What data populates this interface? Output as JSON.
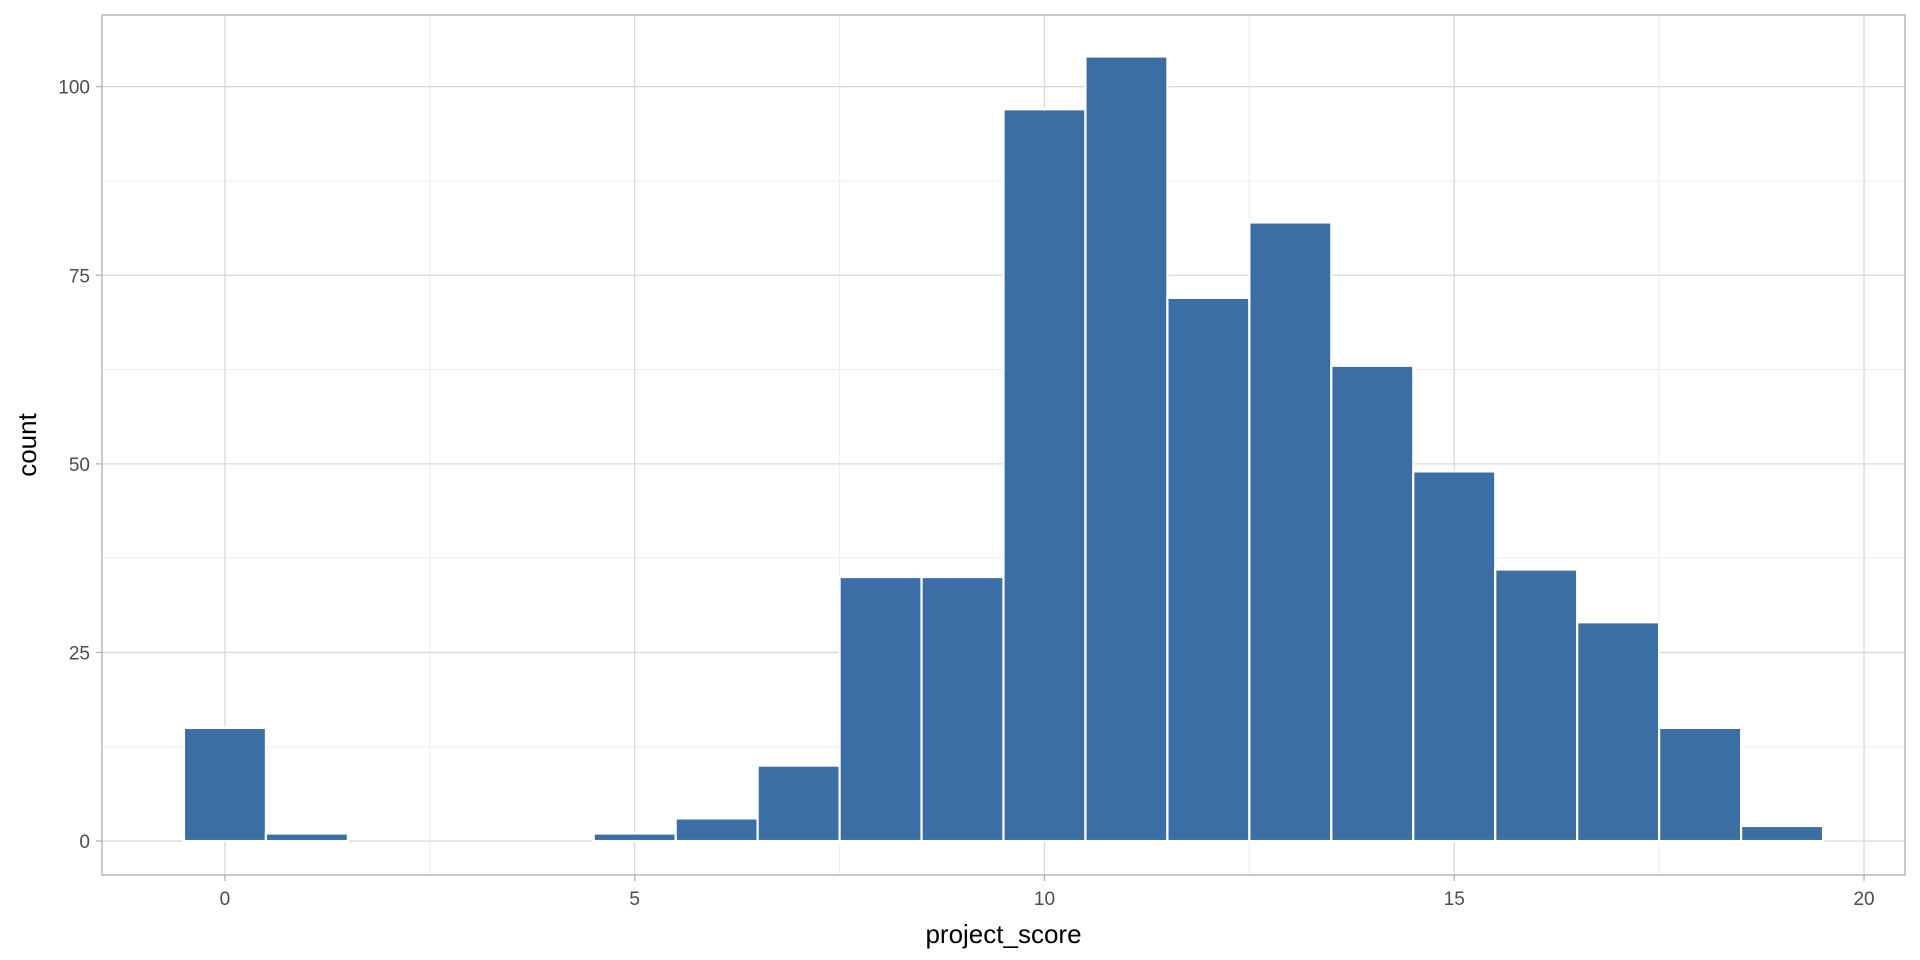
{
  "chart_data": {
    "type": "bar",
    "xlabel": "project_score",
    "ylabel": "count",
    "binwidth": 1,
    "x": [
      0,
      1,
      2,
      3,
      4,
      5,
      6,
      7,
      8,
      9,
      10,
      11,
      12,
      13,
      14,
      15,
      16,
      17,
      18,
      19
    ],
    "values": [
      15,
      1,
      0,
      0,
      0,
      1,
      3,
      10,
      35,
      35,
      97,
      104,
      72,
      82,
      63,
      49,
      36,
      29,
      15,
      2
    ],
    "xlim": [
      -1.5,
      20.5
    ],
    "ylim": [
      -4.5,
      109.5
    ],
    "x_ticks": [
      0,
      5,
      10,
      15,
      20
    ],
    "y_ticks": [
      0,
      25,
      50,
      75,
      100
    ],
    "grid": true,
    "colors": {
      "bar_fill": "#3b6ea5",
      "bar_stroke": "#ffffff",
      "panel_border": "#b3b3b3",
      "grid_major": "#d9d9d9",
      "grid_minor": "#ececec"
    }
  }
}
